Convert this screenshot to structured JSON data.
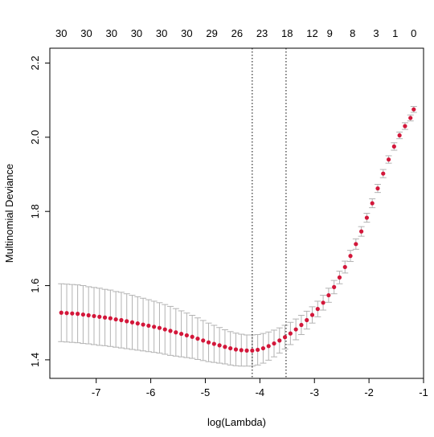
{
  "chart_data": {
    "type": "scatter",
    "xlabel": "log(Lambda)",
    "ylabel": "Multinomial Deviance",
    "xlim": [
      -7.85,
      -1.0
    ],
    "ylim": [
      1.35,
      2.24
    ],
    "x_ticks": [
      -7,
      -6,
      -5,
      -4,
      -3,
      -2,
      -1
    ],
    "y_ticks": [
      1.4,
      1.6,
      1.8,
      2.0,
      2.2
    ],
    "top_axis": {
      "positions": [
        -7.64,
        -7.18,
        -6.72,
        -6.26,
        -5.8,
        -5.34,
        -4.88,
        -4.42,
        -3.96,
        -3.5,
        -3.04,
        -2.72,
        -2.3,
        -1.87,
        -1.52,
        -1.18
      ],
      "labels": [
        "30",
        "30",
        "30",
        "30",
        "30",
        "30",
        "29",
        "26",
        "23",
        "18",
        "12",
        "9",
        "8",
        "3",
        "1",
        "0"
      ]
    },
    "vlines": [
      -4.14,
      -3.52
    ],
    "series": [
      {
        "x": [
          -7.64,
          -7.54,
          -7.44,
          -7.34,
          -7.24,
          -7.14,
          -7.04,
          -6.94,
          -6.84,
          -6.74,
          -6.64,
          -6.54,
          -6.44,
          -6.34,
          -6.24,
          -6.14,
          -6.04,
          -5.94,
          -5.84,
          -5.74,
          -5.64,
          -5.54,
          -5.44,
          -5.34,
          -5.24,
          -5.14,
          -5.04,
          -4.94,
          -4.84,
          -4.74,
          -4.64,
          -4.54,
          -4.44,
          -4.34,
          -4.24,
          -4.14,
          -4.04,
          -3.94,
          -3.84,
          -3.74,
          -3.64,
          -3.54,
          -3.44,
          -3.34,
          -3.24,
          -3.14,
          -3.04,
          -2.94,
          -2.84,
          -2.74,
          -2.64,
          -2.54,
          -2.44,
          -2.34,
          -2.24,
          -2.14,
          -2.04,
          -1.94,
          -1.84,
          -1.74,
          -1.64,
          -1.54,
          -1.44,
          -1.34,
          -1.24,
          -1.18
        ],
        "y": [
          1.527,
          1.526,
          1.525,
          1.524,
          1.522,
          1.52,
          1.518,
          1.516,
          1.514,
          1.512,
          1.509,
          1.507,
          1.504,
          1.501,
          1.498,
          1.495,
          1.492,
          1.489,
          1.486,
          1.482,
          1.478,
          1.474,
          1.47,
          1.466,
          1.462,
          1.457,
          1.452,
          1.447,
          1.443,
          1.439,
          1.435,
          1.431,
          1.428,
          1.426,
          1.425,
          1.425,
          1.427,
          1.431,
          1.437,
          1.444,
          1.452,
          1.461,
          1.471,
          1.482,
          1.494,
          1.507,
          1.521,
          1.537,
          1.554,
          1.574,
          1.596,
          1.622,
          1.65,
          1.68,
          1.712,
          1.746,
          1.783,
          1.822,
          1.862,
          1.902,
          1.94,
          1.975,
          2.005,
          2.03,
          2.052,
          2.075
        ],
        "ci_half": [
          0.078,
          0.078,
          0.078,
          0.078,
          0.078,
          0.077,
          0.077,
          0.077,
          0.076,
          0.076,
          0.075,
          0.075,
          0.074,
          0.073,
          0.072,
          0.071,
          0.07,
          0.069,
          0.068,
          0.067,
          0.066,
          0.064,
          0.062,
          0.06,
          0.058,
          0.056,
          0.054,
          0.052,
          0.05,
          0.048,
          0.046,
          0.045,
          0.044,
          0.043,
          0.042,
          0.042,
          0.041,
          0.04,
          0.038,
          0.036,
          0.034,
          0.032,
          0.03,
          0.028,
          0.026,
          0.024,
          0.022,
          0.021,
          0.02,
          0.019,
          0.018,
          0.017,
          0.016,
          0.015,
          0.014,
          0.013,
          0.012,
          0.012,
          0.011,
          0.011,
          0.01,
          0.01,
          0.009,
          0.009,
          0.008,
          0.008
        ],
        "point_color": "#d3173a",
        "error_bar_color": "#b3b3b3"
      }
    ]
  }
}
